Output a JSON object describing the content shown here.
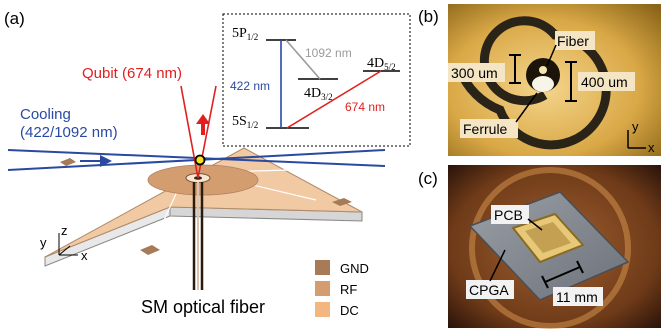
{
  "panel_a": {
    "label": "(a)",
    "qubit_label": "Qubit (674 nm)",
    "cooling_label_1": "Cooling",
    "cooling_label_2": "(422/1092 nm)",
    "axis_x": "x",
    "axis_y": "y",
    "axis_z": "z",
    "fiber_label": "SM optical fiber",
    "legend": [
      {
        "name": "GND",
        "color": "#a77b58"
      },
      {
        "name": "RF",
        "color": "#d49d70"
      },
      {
        "name": "DC",
        "color": "#f3b680"
      }
    ]
  },
  "energy_levels": {
    "l_5P": "5P",
    "l_5P_sub": "1/2",
    "l_5S": "5S",
    "l_5S_sub": "1/2",
    "l_4D32": "4D",
    "l_4D32_sub": "3/2",
    "l_4D52": "4D",
    "l_4D52_sub": "5/2",
    "t_422": "422 nm",
    "t_1092": "1092 nm",
    "t_674": "674 nm"
  },
  "panel_b": {
    "label": "(b)",
    "fiber": "Fiber",
    "ferrule": "Ferrule",
    "dim_300": "300 um",
    "dim_400": "400 um",
    "axis_y": "y",
    "axis_x": "x"
  },
  "panel_c": {
    "label": "(c)",
    "pcb": "PCB",
    "cpga": "CPGA",
    "dim_11": "11 mm"
  },
  "colors": {
    "cooling": "#2a4aa0",
    "qubit": "#e02020",
    "plate": "#f1c9a2",
    "gnd": "#a77b58",
    "rf": "#d49d70",
    "dc": "#f3b680"
  }
}
